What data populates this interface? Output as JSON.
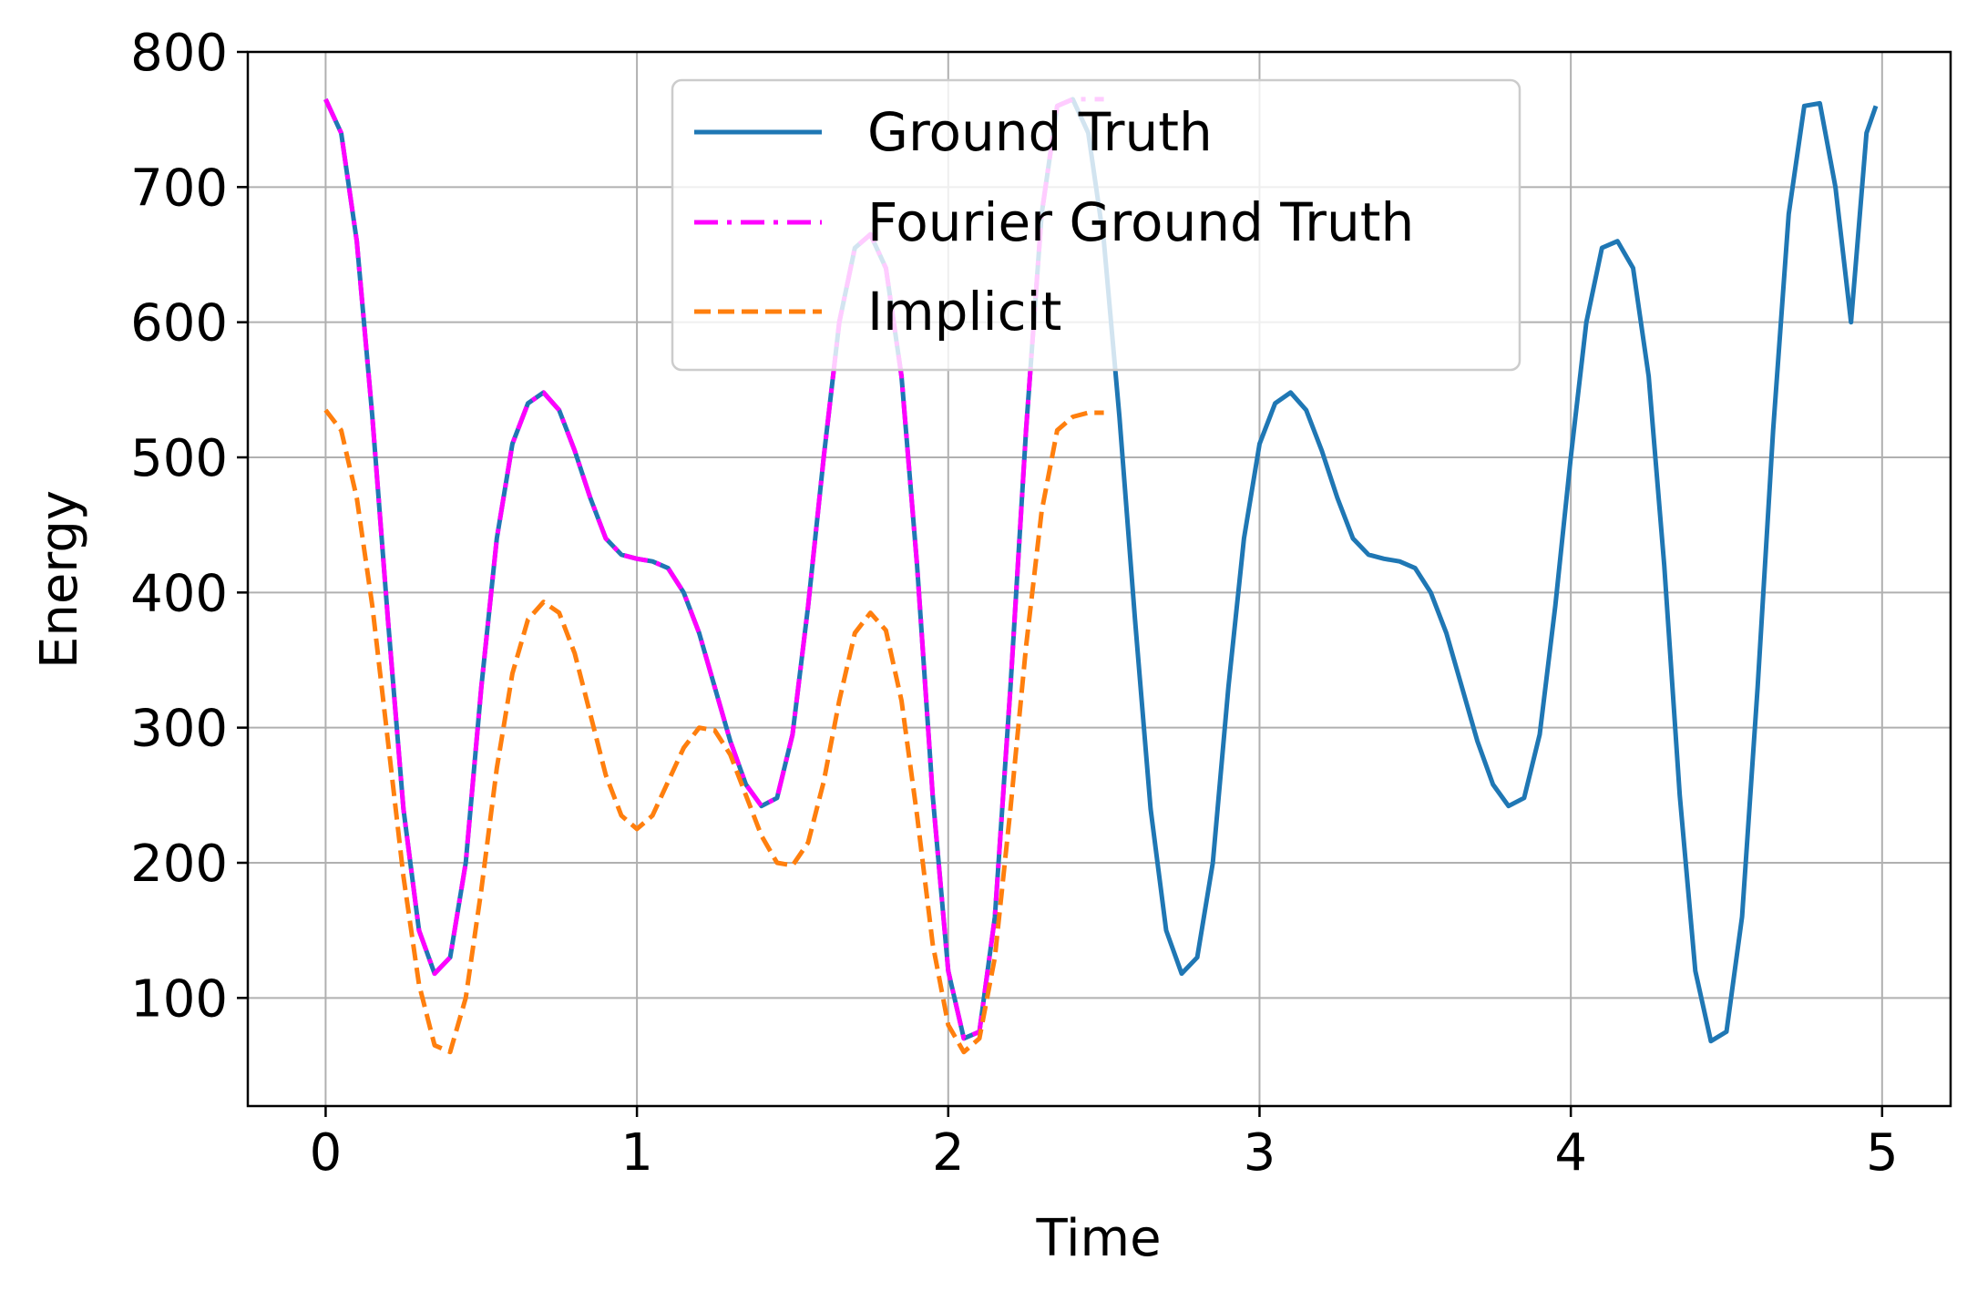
{
  "chart_data": {
    "type": "line",
    "xlabel": "Time",
    "ylabel": "Energy",
    "xlim": [
      -0.25,
      5.22
    ],
    "ylim": [
      20,
      800
    ],
    "xticks": [
      0,
      1,
      2,
      3,
      4,
      5
    ],
    "yticks": [
      100,
      200,
      300,
      400,
      500,
      600,
      700,
      800
    ],
    "grid": true,
    "legend_position": "top-center",
    "series": [
      {
        "name": "Ground Truth",
        "color": "#1f77b4",
        "style": "solid",
        "x": [
          0,
          0.05,
          0.1,
          0.15,
          0.2,
          0.25,
          0.3,
          0.35,
          0.4,
          0.45,
          0.5,
          0.55,
          0.6,
          0.65,
          0.7,
          0.75,
          0.8,
          0.85,
          0.9,
          0.95,
          1.0,
          1.05,
          1.1,
          1.15,
          1.2,
          1.25,
          1.3,
          1.35,
          1.4,
          1.45,
          1.5,
          1.55,
          1.6,
          1.65,
          1.7,
          1.75,
          1.8,
          1.85,
          1.9,
          1.95,
          2.0,
          2.05,
          2.1,
          2.15,
          2.2,
          2.25,
          2.3,
          2.35,
          2.4,
          2.45,
          2.5,
          2.55,
          2.6,
          2.65,
          2.7,
          2.75,
          2.8,
          2.85,
          2.9,
          2.95,
          3.0,
          3.05,
          3.1,
          3.15,
          3.2,
          3.25,
          3.3,
          3.35,
          3.4,
          3.45,
          3.5,
          3.55,
          3.6,
          3.65,
          3.7,
          3.75,
          3.8,
          3.85,
          3.9,
          3.95,
          4.0,
          4.05,
          4.1,
          4.15,
          4.2,
          4.25,
          4.3,
          4.35,
          4.4,
          4.45,
          4.5,
          4.55,
          4.6,
          4.65,
          4.7,
          4.75,
          4.8,
          4.85,
          4.9,
          4.95,
          4.98
        ],
        "y": [
          765,
          740,
          660,
          530,
          380,
          240,
          150,
          118,
          130,
          200,
          330,
          440,
          510,
          540,
          548,
          535,
          505,
          470,
          440,
          428,
          425,
          423,
          418,
          400,
          370,
          330,
          290,
          258,
          242,
          248,
          295,
          390,
          500,
          600,
          655,
          665,
          640,
          560,
          420,
          250,
          120,
          70,
          75,
          160,
          330,
          520,
          680,
          760,
          765,
          740,
          660,
          530,
          380,
          240,
          150,
          118,
          130,
          200,
          330,
          440,
          510,
          540,
          548,
          535,
          505,
          470,
          440,
          428,
          425,
          423,
          418,
          400,
          370,
          330,
          290,
          258,
          242,
          248,
          295,
          390,
          500,
          600,
          655,
          660,
          640,
          560,
          420,
          250,
          120,
          68,
          75,
          160,
          330,
          520,
          680,
          760,
          762,
          700,
          600,
          740,
          760
        ]
      },
      {
        "name": "Fourier Ground Truth",
        "color": "#ff00ff",
        "style": "dashdot",
        "x": [
          0,
          0.05,
          0.1,
          0.15,
          0.2,
          0.25,
          0.3,
          0.35,
          0.4,
          0.45,
          0.5,
          0.55,
          0.6,
          0.65,
          0.7,
          0.75,
          0.8,
          0.85,
          0.9,
          0.95,
          1.0,
          1.05,
          1.1,
          1.15,
          1.2,
          1.25,
          1.3,
          1.35,
          1.4,
          1.45,
          1.5,
          1.55,
          1.6,
          1.65,
          1.7,
          1.75,
          1.8,
          1.85,
          1.9,
          1.95,
          2.0,
          2.05,
          2.1,
          2.15,
          2.2,
          2.25,
          2.3,
          2.35,
          2.4,
          2.45,
          2.5
        ],
        "y": [
          765,
          740,
          660,
          530,
          380,
          240,
          150,
          118,
          130,
          200,
          330,
          440,
          510,
          540,
          548,
          535,
          505,
          470,
          440,
          428,
          425,
          423,
          418,
          400,
          370,
          330,
          290,
          258,
          242,
          248,
          295,
          390,
          500,
          600,
          655,
          665,
          640,
          560,
          420,
          250,
          120,
          70,
          75,
          160,
          330,
          520,
          680,
          760,
          765,
          765,
          765
        ]
      },
      {
        "name": "Implicit",
        "color": "#ff7f0e",
        "style": "dashed",
        "x": [
          0,
          0.05,
          0.1,
          0.15,
          0.2,
          0.25,
          0.3,
          0.35,
          0.4,
          0.45,
          0.5,
          0.55,
          0.6,
          0.65,
          0.7,
          0.75,
          0.8,
          0.85,
          0.9,
          0.95,
          1.0,
          1.05,
          1.1,
          1.15,
          1.2,
          1.25,
          1.3,
          1.35,
          1.4,
          1.45,
          1.5,
          1.55,
          1.6,
          1.65,
          1.7,
          1.75,
          1.8,
          1.85,
          1.9,
          1.95,
          2.0,
          2.05,
          2.1,
          2.15,
          2.2,
          2.25,
          2.3,
          2.35,
          2.4,
          2.45,
          2.5
        ],
        "y": [
          535,
          520,
          470,
          390,
          290,
          190,
          110,
          65,
          60,
          100,
          180,
          270,
          340,
          380,
          393,
          385,
          355,
          310,
          265,
          235,
          225,
          235,
          260,
          285,
          300,
          298,
          280,
          250,
          220,
          200,
          198,
          215,
          260,
          320,
          370,
          385,
          372,
          320,
          235,
          140,
          80,
          60,
          70,
          130,
          240,
          360,
          460,
          520,
          530,
          533,
          533
        ]
      }
    ]
  }
}
